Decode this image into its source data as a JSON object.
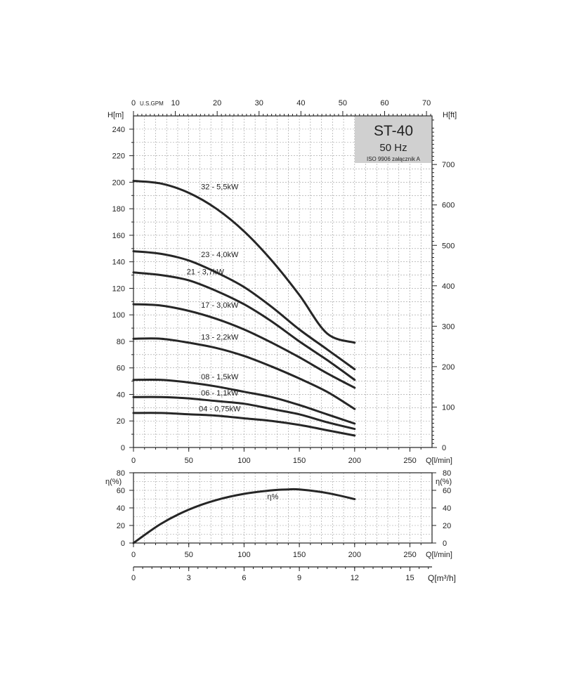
{
  "chart_data": [
    {
      "type": "line",
      "badge": {
        "model": "ST-40",
        "frequency": "50 Hz",
        "standard": "ISO 9906 załącznik A",
        "color": "#d0d0d0"
      },
      "left_axis_label": "H[m]",
      "right_axis_label": "H[ft]",
      "top_axis_label": "U.S.GPM",
      "bottom_axis_label": "Q[l/min]",
      "xlim": [
        0,
        270
      ],
      "ylim": [
        0,
        250
      ],
      "x_ticks": [
        "0",
        "50",
        "100",
        "150",
        "200",
        "250"
      ],
      "y_ticks": [
        "0",
        "20",
        "40",
        "60",
        "80",
        "100",
        "120",
        "140",
        "160",
        "180",
        "200",
        "220",
        "240"
      ],
      "top_ticks": [
        "0",
        "10",
        "20",
        "30",
        "40",
        "50",
        "60",
        "70"
      ],
      "right_ticks": [
        "0",
        "100",
        "200",
        "300",
        "400",
        "500",
        "600",
        "700"
      ],
      "series": [
        {
          "name": "32 - 5,5kW",
          "x": [
            0,
            25,
            50,
            75,
            100,
            125,
            150,
            175,
            200
          ],
          "y": [
            201,
            199,
            192,
            180,
            163,
            141,
            115,
            86,
            79
          ]
        },
        {
          "name": "23 - 4,0kW",
          "x": [
            0,
            25,
            50,
            75,
            100,
            125,
            150,
            175,
            200
          ],
          "y": [
            148,
            146,
            141,
            132,
            121,
            106,
            89,
            74,
            59
          ]
        },
        {
          "name": "21 - 3,7kW",
          "x": [
            0,
            25,
            50,
            75,
            100,
            125,
            150,
            175,
            200
          ],
          "y": [
            132,
            130,
            126,
            118,
            108,
            95,
            80,
            66,
            51
          ]
        },
        {
          "name": "17 - 3,0kW",
          "x": [
            0,
            25,
            50,
            75,
            100,
            125,
            150,
            175,
            200
          ],
          "y": [
            108,
            107,
            103,
            97,
            89,
            79,
            68,
            56,
            45
          ]
        },
        {
          "name": "13 - 2,2kW",
          "x": [
            0,
            25,
            50,
            75,
            100,
            125,
            150,
            175,
            200
          ],
          "y": [
            82,
            82,
            79,
            75,
            69,
            61,
            52,
            42,
            29
          ]
        },
        {
          "name": "08 - 1,5kW",
          "x": [
            0,
            25,
            50,
            75,
            100,
            125,
            150,
            175,
            200
          ],
          "y": [
            51,
            51,
            49,
            46,
            42,
            38,
            32,
            25,
            18
          ]
        },
        {
          "name": "06 - 1,1kW",
          "x": [
            0,
            25,
            50,
            75,
            100,
            125,
            150,
            175,
            200
          ],
          "y": [
            38,
            38,
            37,
            35,
            33,
            29,
            25,
            19,
            14
          ]
        },
        {
          "name": "04 - 0,75kW",
          "x": [
            0,
            25,
            50,
            75,
            100,
            125,
            150,
            175,
            200
          ],
          "y": [
            26,
            26,
            25,
            24,
            22,
            20,
            17,
            13,
            9
          ]
        }
      ]
    },
    {
      "type": "line",
      "left_axis_label": "η(%)",
      "right_axis_label": "η(%)",
      "bottom_axis_label": "Q[l/min]",
      "bottom2_axis_label": "Q[m³/h]",
      "xlim": [
        0,
        270
      ],
      "ylim": [
        0,
        80
      ],
      "x_ticks": [
        "0",
        "50",
        "100",
        "150",
        "200",
        "250"
      ],
      "y_ticks": [
        "0",
        "20",
        "40",
        "60",
        "80"
      ],
      "m3h_ticks": [
        "0",
        "3",
        "6",
        "9",
        "12",
        "15"
      ],
      "series": [
        {
          "name": "η%",
          "x": [
            0,
            25,
            50,
            75,
            100,
            125,
            140,
            150,
            175,
            200
          ],
          "y": [
            0,
            22,
            38,
            49,
            56,
            60,
            61,
            61,
            57,
            50
          ]
        }
      ]
    }
  ]
}
